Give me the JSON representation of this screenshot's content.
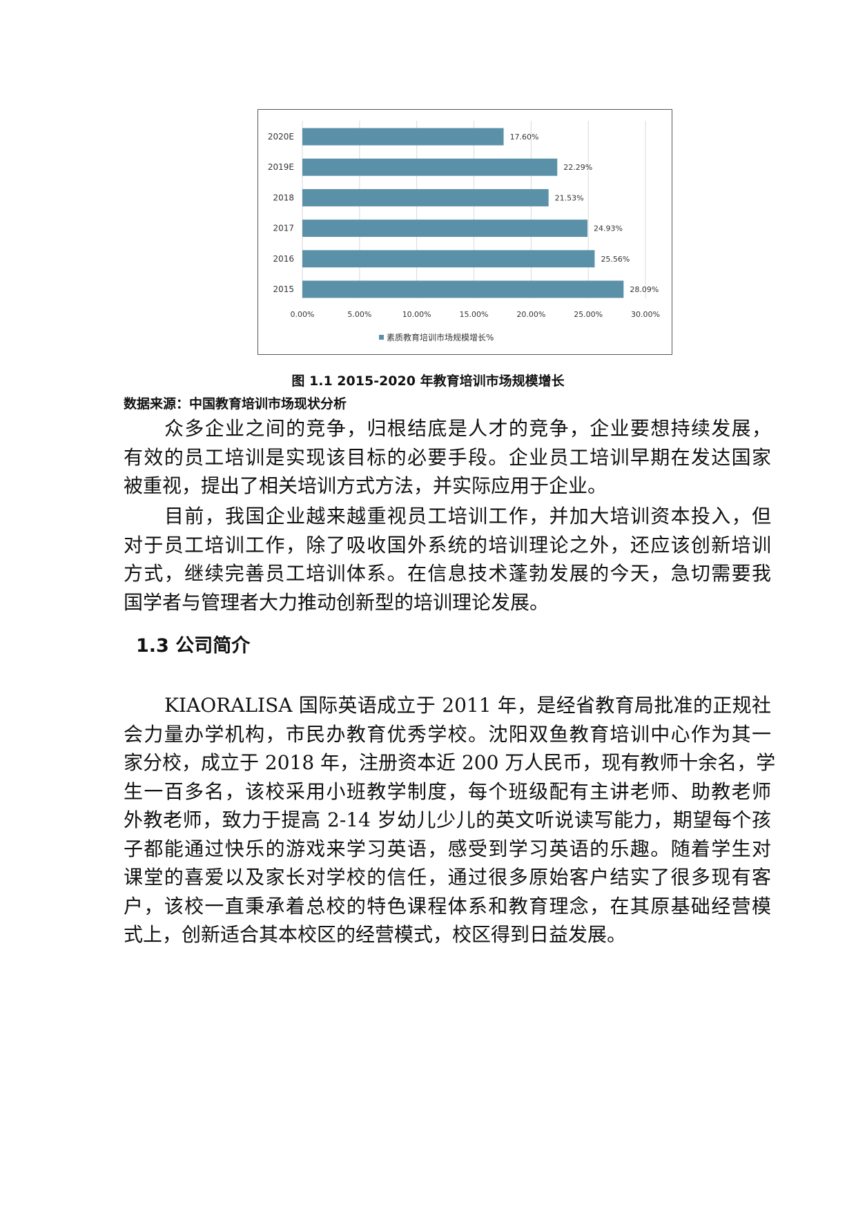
{
  "chart_data": {
    "type": "bar",
    "orientation": "horizontal",
    "categories": [
      "2020E",
      "2019E",
      "2018",
      "2017",
      "2016",
      "2015"
    ],
    "series": [
      {
        "name": "素质教育培训市场规模增长%",
        "values": [
          17.6,
          22.29,
          21.53,
          24.93,
          25.56,
          28.09
        ],
        "color": "#5b91a8"
      }
    ],
    "data_labels": [
      "17.60%",
      "22.29%",
      "21.53%",
      "24.93%",
      "25.56%",
      "28.09%"
    ],
    "xlim": [
      0,
      30
    ],
    "xticks": [
      "0.00%",
      "5.00%",
      "10.00%",
      "15.00%",
      "20.00%",
      "25.00%",
      "30.00%"
    ],
    "grid": "vertical",
    "legend": "bottom"
  },
  "caption": "图 1.1 2015-2020 年教育培训市场规模增长",
  "source": "数据来源：中国教育培训市场现状分析",
  "para1": [
    "众多企业之间的竞争，归根结底是人才的竞争，企业要想持续发展，",
    "有效的员工培训是实现该目标的必要手段。企业员工培训早期在发达国家",
    "被重视，提出了相关培训方式方法，并实际应用于企业。"
  ],
  "para2": [
    "目前，我国企业越来越重视员工培训工作，并加大培训资本投入，但",
    "对于员工培训工作，除了吸收国外系统的培训理论之外，还应该创新培训",
    "方式，继续完善员工培训体系。在信息技术蓬勃发展的今天，急切需要我",
    "国学者与管理者大力推动创新型的培训理论发展。"
  ],
  "heading": "1.3  公司简介",
  "para3": [
    "KIAORALISA 国际英语成立于 2011 年，是经省教育局批准的正规社",
    "会力量办学机构，市民办教育优秀学校。沈阳双鱼教育培训中心作为其一",
    "家分校，成立于 2018 年，注册资本近 200 万人民币，现有教师十余名，学",
    "生一百多名，该校采用小班教学制度，每个班级配有主讲老师、助教老师",
    "外教老师，致力于提高 2-14 岁幼儿少儿的英文听说读写能力，期望每个孩",
    "子都能通过快乐的游戏来学习英语，感受到学习英语的乐趣。随着学生对",
    "课堂的喜爱以及家长对学校的信任，通过很多原始客户结实了很多现有客",
    "户，该校一直秉承着总校的特色课程体系和教育理念，在其原基础经营模",
    "式上，创新适合其本校区的经营模式，校区得到日益发展。"
  ]
}
